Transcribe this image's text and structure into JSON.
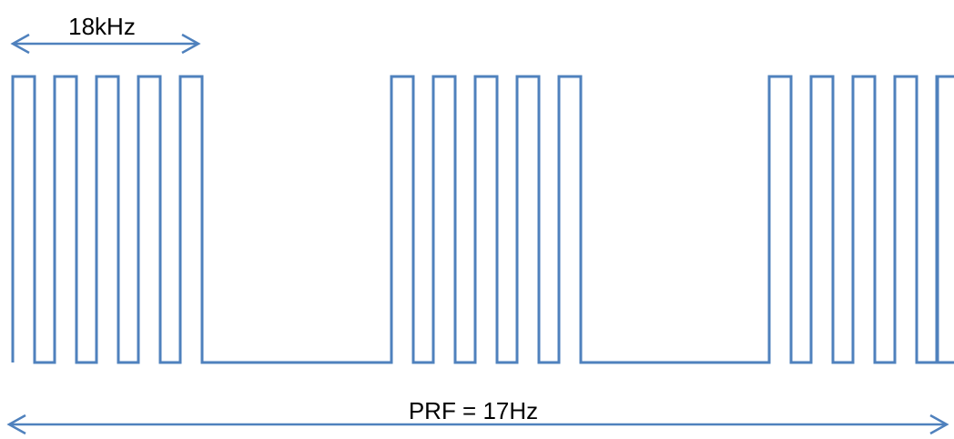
{
  "labels": {
    "pulse_frequency": "18kHz",
    "prf": "PRF = 17Hz"
  },
  "waveform": {
    "pulses_per_burst": 5,
    "bursts": 3
  },
  "colors": {
    "waveform": "#4f81bd",
    "arrow": "#4f81bd",
    "text": "#000000"
  }
}
